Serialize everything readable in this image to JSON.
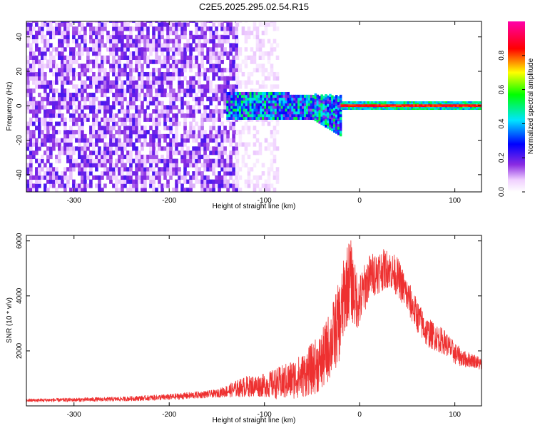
{
  "chart_data": [
    {
      "type": "heatmap",
      "title": "C2E5.2025.295.02.54.R15",
      "xlabel": "Height of straight line (km)",
      "ylabel": "Frequency (Hz)",
      "xlim": [
        -350,
        128
      ],
      "ylim": [
        -50,
        49
      ],
      "x_ticks": [
        -300,
        -200,
        -100,
        0,
        100
      ],
      "x_tick_labels": [
        "-300",
        "-200",
        "-100",
        "0",
        "100"
      ],
      "y_ticks": [
        -40,
        -20,
        0,
        20,
        40
      ],
      "y_tick_labels": [
        "-40",
        "-20",
        "0",
        "20",
        "40"
      ],
      "grid": false,
      "colorbar": {
        "label": "Normalized spectral amplitude",
        "range": [
          0,
          1
        ],
        "ticks": [
          0.0,
          0.2,
          0.4,
          0.6,
          0.8
        ],
        "tick_labels": [
          "0.0",
          "0.2",
          "0.4",
          "0.6",
          "0.8"
        ],
        "colormap": [
          "#ffffff",
          "#8a2be2",
          "#0000ff",
          "#00e5ff",
          "#00ff00",
          "#ffff00",
          "#ff0000",
          "#ff00aa"
        ]
      },
      "regions": [
        {
          "x_range": [
            -350,
            -130
          ],
          "freq_range": [
            -50,
            49
          ],
          "amplitude": "low (0.05-0.25)",
          "color": "#8a2be2"
        },
        {
          "x_range": [
            -130,
            -85
          ],
          "freq_range": [
            -50,
            49
          ],
          "amplitude": "very low (0.02-0.1)",
          "color": "#c8a8f0"
        },
        {
          "x_range": [
            -140,
            -20
          ],
          "freq_range": [
            -15,
            8
          ],
          "amplitude": "0.15-0.55",
          "color": "#00e5ff"
        },
        {
          "x_range": [
            -20,
            128
          ],
          "freq_range": [
            -1,
            1
          ],
          "amplitude": "0.6-1.0",
          "color": "#ff0000"
        }
      ]
    },
    {
      "type": "line",
      "xlabel": "Height of straight line (km)",
      "ylabel": "SNR (10 * v/v)",
      "xlim": [
        -350,
        128
      ],
      "ylim": [
        0,
        6200
      ],
      "x_ticks": [
        -300,
        -200,
        -100,
        0,
        100
      ],
      "x_tick_labels": [
        "-300",
        "-200",
        "-100",
        "0",
        "100"
      ],
      "y_ticks": [
        2000,
        4000,
        6000
      ],
      "y_tick_labels": [
        "2000",
        "4000",
        "6000"
      ],
      "grid": false,
      "series": [
        {
          "color": "#ee3030",
          "x": [
            -350,
            -300,
            -250,
            -200,
            -150,
            -120,
            -100,
            -80,
            -60,
            -40,
            -30,
            -20,
            -15,
            -10,
            -5,
            0,
            10,
            20,
            30,
            40,
            50,
            60,
            70,
            80,
            90,
            100,
            110,
            120,
            128
          ],
          "y": [
            200,
            220,
            250,
            320,
            450,
            700,
            750,
            850,
            1100,
            1600,
            2300,
            3200,
            4200,
            4700,
            4000,
            3800,
            4700,
            4900,
            5000,
            4700,
            4000,
            3300,
            2700,
            2500,
            2300,
            1900,
            1700,
            1650,
            1500
          ],
          "y_spread": [
            60,
            70,
            80,
            110,
            140,
            380,
            420,
            650,
            800,
            1100,
            1300,
            1500,
            1500,
            1500,
            1200,
            1000,
            800,
            800,
            700,
            700,
            650,
            600,
            550,
            500,
            450,
            400,
            300,
            250,
            250
          ]
        }
      ]
    }
  ]
}
